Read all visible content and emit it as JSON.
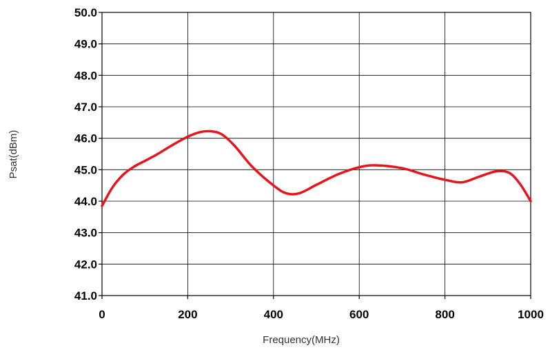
{
  "chart_data": {
    "type": "line",
    "title": "",
    "xlabel": "Frequency(MHz)",
    "ylabel": "Psat(dBm)",
    "xlim": [
      0,
      1000
    ],
    "ylim": [
      41.0,
      50.0
    ],
    "x_ticks": [
      0,
      200,
      400,
      600,
      800,
      1000
    ],
    "x_tick_labels": [
      "0",
      "200",
      "400",
      "600",
      "800",
      "1000"
    ],
    "y_ticks": [
      41.0,
      42.0,
      43.0,
      44.0,
      45.0,
      46.0,
      47.0,
      48.0,
      49.0,
      50.0
    ],
    "y_tick_labels": [
      "41.0",
      "42.0",
      "43.0",
      "44.0",
      "45.0",
      "46.0",
      "47.0",
      "48.0",
      "49.0",
      "50.0"
    ],
    "grid": true,
    "legend": "none",
    "series": [
      {
        "color": "#e8141b",
        "x": [
          0,
          25,
          50,
          75,
          100,
          130,
          160,
          200,
          230,
          255,
          280,
          310,
          350,
          400,
          430,
          460,
          500,
          550,
          600,
          640,
          700,
          750,
          800,
          840,
          880,
          920,
          950,
          975,
          1000
        ],
        "y": [
          43.85,
          44.45,
          44.85,
          45.1,
          45.28,
          45.5,
          45.75,
          46.05,
          46.2,
          46.22,
          46.12,
          45.75,
          45.1,
          44.5,
          44.25,
          44.25,
          44.52,
          44.85,
          45.08,
          45.14,
          45.05,
          44.85,
          44.68,
          44.6,
          44.78,
          44.95,
          44.9,
          44.55,
          44.0
        ]
      }
    ]
  }
}
